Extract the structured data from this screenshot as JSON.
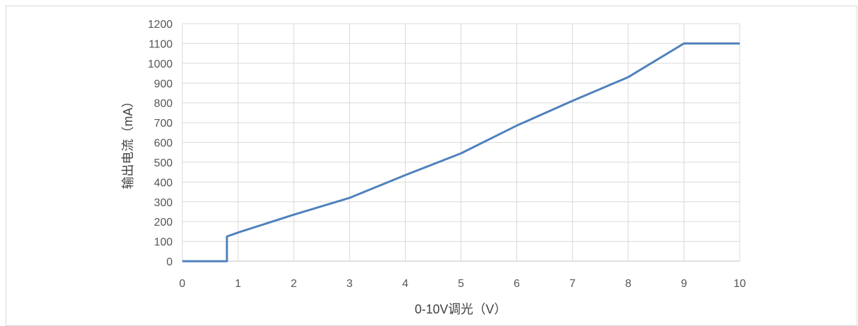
{
  "chart_data": {
    "type": "line",
    "title": "",
    "xlabel": "0-10V调光（V）",
    "ylabel": "输出电流（mA）",
    "xlim": [
      0,
      10
    ],
    "ylim": [
      0,
      1200
    ],
    "x_ticks": [
      "0",
      "1",
      "2",
      "3",
      "4",
      "5",
      "6",
      "7",
      "8",
      "9",
      "10"
    ],
    "y_ticks": [
      "0",
      "100",
      "200",
      "300",
      "400",
      "500",
      "600",
      "700",
      "800",
      "900",
      "1000",
      "1100",
      "1200"
    ],
    "grid": true,
    "legend": "none",
    "line_color": "#4f81bd",
    "series": [
      {
        "x": [
          0,
          0.8,
          0.8,
          1,
          2,
          3,
          4,
          5,
          6,
          7,
          8,
          9,
          10
        ],
        "y": [
          0,
          0,
          125,
          145,
          235,
          320,
          435,
          545,
          685,
          810,
          930,
          1100,
          1100
        ]
      }
    ]
  }
}
